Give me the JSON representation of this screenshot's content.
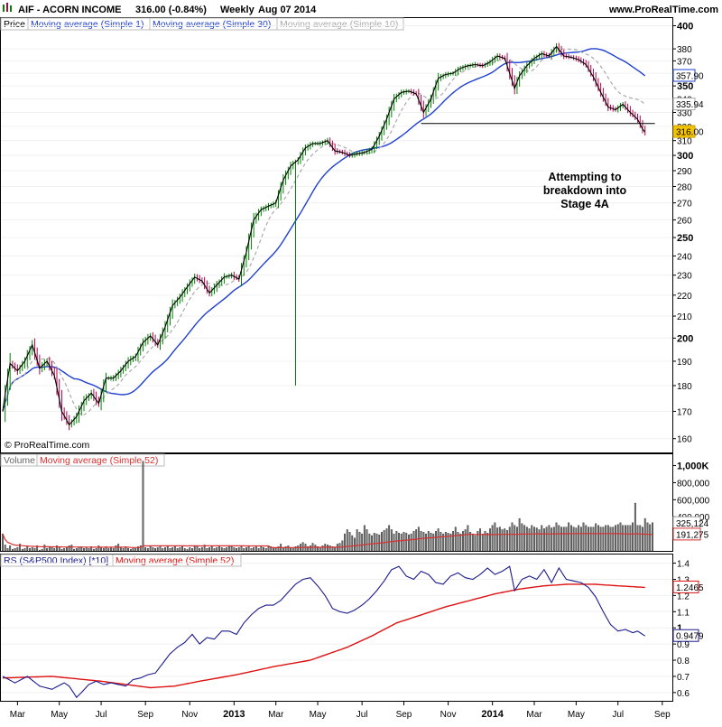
{
  "header": {
    "symbol": "AIF - ACORN INCOME",
    "quote": "316.00 (-0.84%)",
    "period": "Weekly",
    "date": "Aug 07 2014",
    "site": "www.ProRealTime.com",
    "copyright": "© ProRealTime.com"
  },
  "colors": {
    "up": "#008000",
    "down": "#b0004a",
    "sma1": "#000000",
    "sma30": "#1f3fd0",
    "sma10": "#aaaaaa",
    "volume": "#707070",
    "vol_ma": "#d83030",
    "rs_line": "#1a1a8c",
    "rs_ma": "#dd1111",
    "price_tag": "#f5c400"
  },
  "chart_data": [
    {
      "type": "line",
      "panel": "price",
      "legend": [
        "Price",
        "Moving average (Simple 1)",
        "Moving average (Simple 30)",
        "Moving average (Simple 10)"
      ],
      "x_labels": [
        "Mar",
        "May",
        "Jul",
        "Sep",
        "Nov",
        "2013",
        "Mar",
        "May",
        "Jul",
        "Sep",
        "Nov",
        "2014",
        "Mar",
        "May",
        "Jul",
        "Sep"
      ],
      "x_label_index": [
        6,
        23,
        40,
        58,
        76,
        94,
        111,
        128,
        146,
        163,
        181,
        199,
        216,
        233,
        250,
        268
      ],
      "y_ticks": [
        160,
        170,
        180,
        190,
        200,
        210,
        220,
        230,
        240,
        250,
        260,
        270,
        280,
        290,
        300,
        310,
        320,
        330,
        340,
        350,
        360,
        370,
        380,
        400
      ],
      "y_bold": [
        200,
        250,
        300,
        350,
        400
      ],
      "y_scale": "log",
      "ylim": [
        158,
        402
      ],
      "weeks": 272,
      "price_anchors": [
        [
          0,
          170
        ],
        [
          3,
          189
        ],
        [
          6,
          186
        ],
        [
          9,
          190
        ],
        [
          12,
          197
        ],
        [
          15,
          187
        ],
        [
          18,
          190
        ],
        [
          21,
          184
        ],
        [
          24,
          170
        ],
        [
          27,
          165
        ],
        [
          30,
          168
        ],
        [
          33,
          174
        ],
        [
          36,
          177
        ],
        [
          39,
          173
        ],
        [
          42,
          183
        ],
        [
          45,
          183
        ],
        [
          48,
          186
        ],
        [
          51,
          190
        ],
        [
          54,
          192
        ],
        [
          57,
          198
        ],
        [
          60,
          201
        ],
        [
          63,
          197
        ],
        [
          66,
          205
        ],
        [
          69,
          215
        ],
        [
          72,
          219
        ],
        [
          75,
          224
        ],
        [
          78,
          229
        ],
        [
          81,
          227
        ],
        [
          84,
          221
        ],
        [
          87,
          225
        ],
        [
          90,
          229
        ],
        [
          93,
          230
        ],
        [
          96,
          228
        ],
        [
          99,
          242
        ],
        [
          102,
          260
        ],
        [
          105,
          266
        ],
        [
          108,
          268
        ],
        [
          111,
          270
        ],
        [
          114,
          284
        ],
        [
          117,
          293
        ],
        [
          120,
          297
        ],
        [
          123,
          305
        ],
        [
          126,
          308
        ],
        [
          129,
          308
        ],
        [
          132,
          310
        ],
        [
          135,
          303
        ],
        [
          138,
          302
        ],
        [
          141,
          300
        ],
        [
          144,
          301
        ],
        [
          147,
          302
        ],
        [
          150,
          304
        ],
        [
          153,
          313
        ],
        [
          156,
          325
        ],
        [
          159,
          340
        ],
        [
          162,
          345
        ],
        [
          165,
          346
        ],
        [
          168,
          344
        ],
        [
          171,
          330
        ],
        [
          174,
          340
        ],
        [
          177,
          356
        ],
        [
          180,
          359
        ],
        [
          183,
          360
        ],
        [
          186,
          364
        ],
        [
          189,
          366
        ],
        [
          192,
          367
        ],
        [
          195,
          366
        ],
        [
          198,
          369
        ],
        [
          201,
          374
        ],
        [
          204,
          372
        ],
        [
          206,
          360
        ],
        [
          208,
          348
        ],
        [
          210,
          358
        ],
        [
          213,
          366
        ],
        [
          216,
          372
        ],
        [
          219,
          376
        ],
        [
          222,
          374
        ],
        [
          225,
          382
        ],
        [
          228,
          374
        ],
        [
          231,
          373
        ],
        [
          234,
          371
        ],
        [
          237,
          367
        ],
        [
          240,
          357
        ],
        [
          243,
          345
        ],
        [
          246,
          334
        ],
        [
          249,
          332
        ],
        [
          252,
          336
        ],
        [
          255,
          330
        ],
        [
          258,
          325
        ],
        [
          260,
          318
        ],
        [
          261,
          316
        ]
      ],
      "spike": {
        "week": 119,
        "low": 180
      },
      "sma30_last": 357.9,
      "sma10_last": 335.94,
      "last_close": 316.0,
      "support_line": {
        "level": 322,
        "from_week": 170,
        "to_week": 265
      },
      "annotation": [
        "Attempting to",
        "breakdown into",
        "Stage 4A"
      ],
      "price_labels": {
        "sma30": "357.90",
        "sma10": "335.94",
        "last": "316.00"
      }
    },
    {
      "type": "bar",
      "panel": "volume",
      "legend": [
        "Volume",
        "Moving average (Simple 52)"
      ],
      "y_ticks": [
        {
          "v": 1000000,
          "label": "1,000K",
          "bold": true
        },
        {
          "v": 800000,
          "label": "800,000"
        },
        {
          "v": 600000,
          "label": "600,000"
        },
        {
          "v": 400000,
          "label": "400,000"
        }
      ],
      "ylim": [
        0,
        1080000
      ],
      "values_k": [
        200,
        70,
        30,
        60,
        20,
        30,
        40,
        80,
        20,
        30,
        50,
        30,
        40,
        30,
        60,
        10,
        20,
        70,
        30,
        50,
        40,
        30,
        60,
        40,
        20,
        30,
        40,
        60,
        70,
        20,
        30,
        40,
        50,
        30,
        40,
        30,
        50,
        20,
        30,
        60,
        40,
        30,
        50,
        30,
        40,
        30,
        60,
        80,
        40,
        30,
        50,
        30,
        20,
        40,
        30,
        50,
        60,
        1050,
        40,
        30,
        50,
        40,
        30,
        40,
        60,
        30,
        40,
        50,
        30,
        40,
        60,
        30,
        40,
        50,
        30,
        20,
        40,
        30,
        50,
        60,
        30,
        40,
        70,
        30,
        40,
        50,
        30,
        40,
        60,
        40,
        30,
        40,
        60,
        50,
        40,
        30,
        40,
        50,
        30,
        40,
        60,
        30,
        40,
        60,
        30,
        50,
        40,
        30,
        60,
        50,
        40,
        30,
        50,
        80,
        40,
        50,
        60,
        40,
        30,
        50,
        60,
        80,
        100,
        80,
        50,
        60,
        90,
        70,
        50,
        40,
        60,
        80,
        70,
        60,
        50,
        40,
        80,
        90,
        120,
        200,
        250,
        220,
        180,
        150,
        250,
        220,
        200,
        300,
        250,
        200,
        180,
        210,
        200,
        190,
        220,
        240,
        260,
        300,
        250,
        200,
        230,
        210,
        200,
        220,
        210,
        190,
        200,
        230,
        250,
        280,
        230,
        220,
        200,
        230,
        210,
        200,
        230,
        260,
        220,
        200,
        220,
        210,
        200,
        230,
        280,
        220,
        200,
        230,
        250,
        300,
        220,
        200,
        180,
        230,
        260,
        200,
        230,
        210,
        260,
        300,
        330,
        270,
        280,
        250,
        260,
        240,
        280,
        330,
        300,
        280,
        380,
        320,
        300,
        280,
        260,
        300,
        280,
        270,
        250,
        300,
        260,
        280,
        300,
        270,
        280,
        330,
        300,
        280,
        280,
        280,
        330,
        300,
        280,
        270,
        300,
        280,
        330,
        300,
        280,
        280,
        280,
        320,
        300,
        280,
        280,
        300,
        300,
        280,
        280,
        300,
        310,
        330,
        300,
        300,
        300,
        300,
        330,
        560,
        300,
        300,
        280,
        380,
        330,
        310,
        330
      ],
      "ma52_last": 191275,
      "last": 325124,
      "labels": {
        "last": "325,124",
        "ma": "191,275"
      }
    },
    {
      "type": "line",
      "panel": "rs",
      "legend": [
        "RS (S&P500 Index) [*10]",
        "Moving average (Simple 52)"
      ],
      "y_ticks": [
        0.6,
        0.7,
        0.8,
        0.9,
        1.0,
        1.1,
        1.2,
        1.3,
        1.4
      ],
      "y_bold": [
        1.0
      ],
      "y_labels": [
        "0.6",
        "0.7",
        "0.8",
        "0.9",
        "1",
        "1.1",
        "1.2",
        "1.3",
        "1.4"
      ],
      "ylim": [
        0.56,
        1.42
      ],
      "rs_anchors": [
        [
          0,
          0.7
        ],
        [
          5,
          0.66
        ],
        [
          10,
          0.7
        ],
        [
          15,
          0.64
        ],
        [
          20,
          0.62
        ],
        [
          25,
          0.66
        ],
        [
          27,
          0.64
        ],
        [
          30,
          0.57
        ],
        [
          32,
          0.6
        ],
        [
          35,
          0.65
        ],
        [
          38,
          0.67
        ],
        [
          41,
          0.65
        ],
        [
          44,
          0.66
        ],
        [
          47,
          0.65
        ],
        [
          50,
          0.64
        ],
        [
          53,
          0.68
        ],
        [
          56,
          0.69
        ],
        [
          59,
          0.71
        ],
        [
          62,
          0.72
        ],
        [
          65,
          0.78
        ],
        [
          68,
          0.84
        ],
        [
          71,
          0.88
        ],
        [
          74,
          0.91
        ],
        [
          77,
          0.96
        ],
        [
          80,
          0.9
        ],
        [
          83,
          0.94
        ],
        [
          86,
          0.93
        ],
        [
          89,
          0.98
        ],
        [
          92,
          0.98
        ],
        [
          95,
          0.96
        ],
        [
          98,
          1.03
        ],
        [
          101,
          1.08
        ],
        [
          104,
          1.12
        ],
        [
          107,
          1.14
        ],
        [
          110,
          1.14
        ],
        [
          113,
          1.17
        ],
        [
          116,
          1.22
        ],
        [
          119,
          1.27
        ],
        [
          122,
          1.3
        ],
        [
          125,
          1.31
        ],
        [
          128,
          1.26
        ],
        [
          131,
          1.2
        ],
        [
          134,
          1.12
        ],
        [
          137,
          1.1
        ],
        [
          140,
          1.09
        ],
        [
          143,
          1.11
        ],
        [
          146,
          1.14
        ],
        [
          149,
          1.18
        ],
        [
          152,
          1.23
        ],
        [
          155,
          1.29
        ],
        [
          158,
          1.36
        ],
        [
          161,
          1.38
        ],
        [
          164,
          1.32
        ],
        [
          167,
          1.3
        ],
        [
          170,
          1.35
        ],
        [
          173,
          1.33
        ],
        [
          176,
          1.28
        ],
        [
          179,
          1.27
        ],
        [
          182,
          1.32
        ],
        [
          185,
          1.34
        ],
        [
          188,
          1.31
        ],
        [
          191,
          1.3
        ],
        [
          194,
          1.33
        ],
        [
          197,
          1.37
        ],
        [
          200,
          1.33
        ],
        [
          203,
          1.35
        ],
        [
          206,
          1.38
        ],
        [
          208,
          1.23
        ],
        [
          211,
          1.3
        ],
        [
          214,
          1.32
        ],
        [
          217,
          1.3
        ],
        [
          220,
          1.36
        ],
        [
          223,
          1.28
        ],
        [
          226,
          1.37
        ],
        [
          229,
          1.3
        ],
        [
          232,
          1.29
        ],
        [
          235,
          1.28
        ],
        [
          238,
          1.25
        ],
        [
          241,
          1.19
        ],
        [
          244,
          1.1
        ],
        [
          247,
          1.02
        ],
        [
          250,
          0.98
        ],
        [
          253,
          0.99
        ],
        [
          256,
          0.97
        ],
        [
          258,
          0.98
        ],
        [
          261,
          0.95
        ]
      ],
      "ma52_anchors": [
        [
          0,
          0.69
        ],
        [
          20,
          0.7
        ],
        [
          40,
          0.67
        ],
        [
          60,
          0.63
        ],
        [
          70,
          0.64
        ],
        [
          80,
          0.67
        ],
        [
          95,
          0.71
        ],
        [
          110,
          0.76
        ],
        [
          125,
          0.8
        ],
        [
          140,
          0.88
        ],
        [
          150,
          0.95
        ],
        [
          160,
          1.03
        ],
        [
          170,
          1.08
        ],
        [
          180,
          1.13
        ],
        [
          190,
          1.17
        ],
        [
          200,
          1.21
        ],
        [
          210,
          1.24
        ],
        [
          220,
          1.26
        ],
        [
          230,
          1.27
        ],
        [
          240,
          1.27
        ],
        [
          250,
          1.26
        ],
        [
          261,
          1.25
        ]
      ],
      "labels": {
        "ma": "1.2465",
        "last": "0.9479"
      }
    }
  ]
}
